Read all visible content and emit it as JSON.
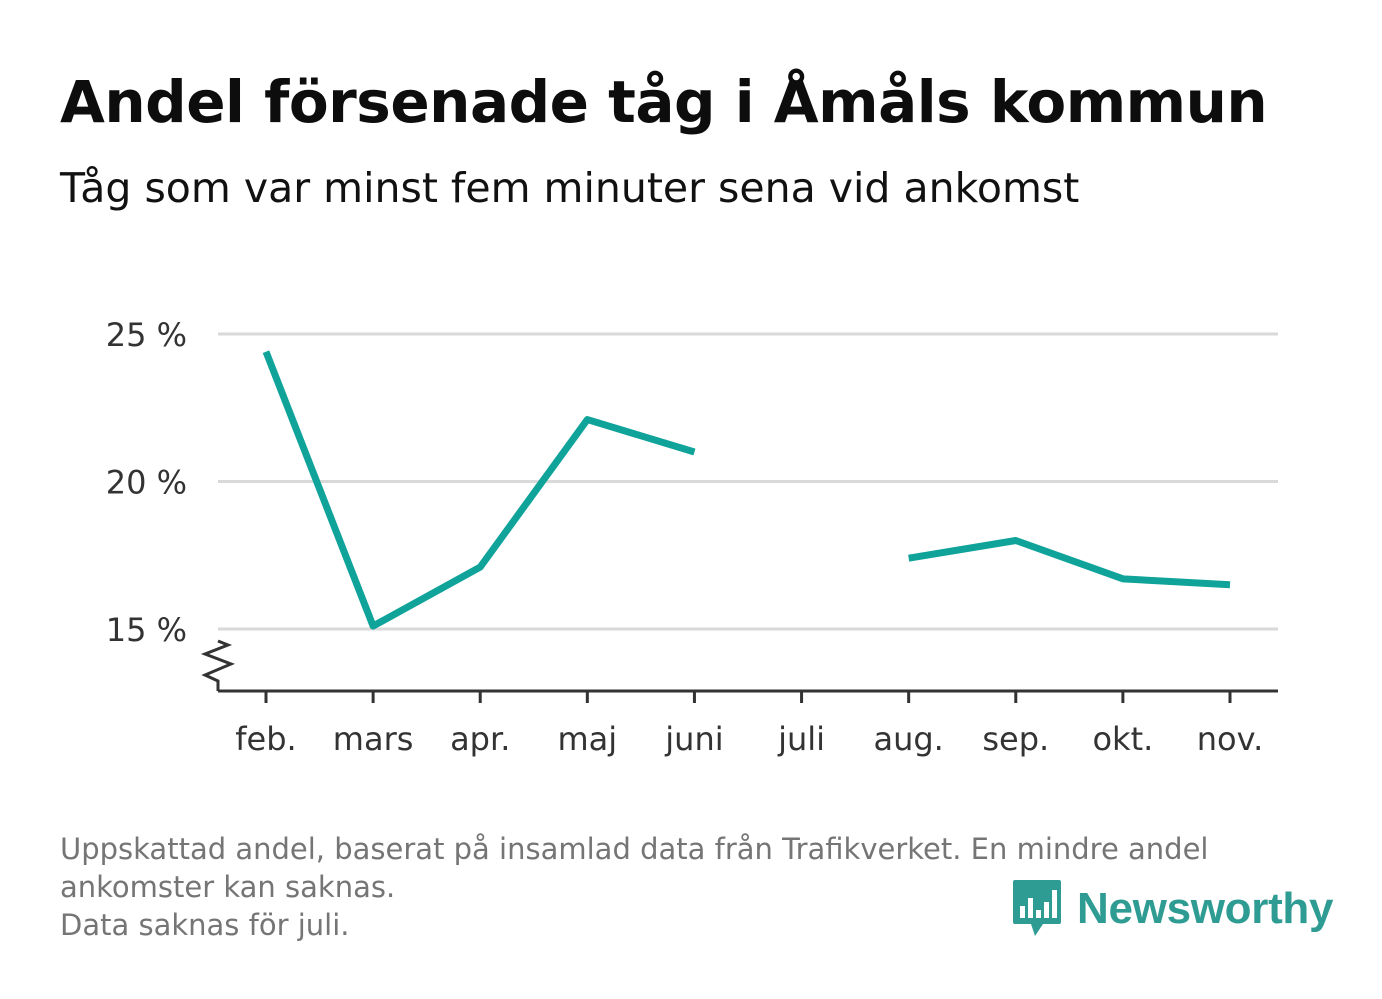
{
  "header": {
    "title": "Andel försenade tåg i Åmåls kommun",
    "subtitle": "Tåg som var minst fem minuter sena vid ankomst"
  },
  "chart_data": {
    "type": "line",
    "categories": [
      "feb.",
      "mars",
      "apr.",
      "maj",
      "juni",
      "juli",
      "aug.",
      "sep.",
      "okt.",
      "nov."
    ],
    "series": [
      {
        "values": [
          24.4,
          15.1,
          17.1,
          22.1,
          21.0,
          null,
          17.4,
          18.0,
          16.7,
          16.5
        ],
        "color": "#0fa39a"
      }
    ],
    "yticks": [
      15,
      20,
      25
    ],
    "ytick_labels": [
      "15 %",
      "20 %",
      "25 %"
    ],
    "ylim": [
      13.0,
      25.0
    ],
    "y_axis_break": true,
    "grid": true,
    "xlabel": "",
    "ylabel": ""
  },
  "footer": {
    "note_line1": "Uppskattad andel, baserat på insamlad data från Trafikverket. En mindre andel",
    "note_line2": "ankomster kan saknas.",
    "note_line3": "Data saknas för juli.",
    "brand": "Newsworthy",
    "brand_color": "#2f9c93",
    "brand_icon": "bar-chart-speech-bubble-icon"
  }
}
